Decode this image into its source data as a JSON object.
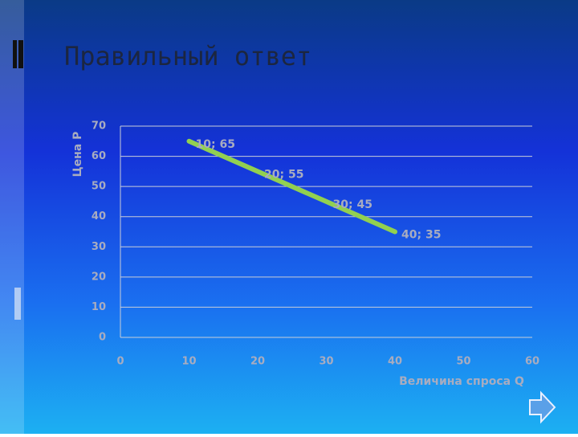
{
  "title": "Правильный ответ",
  "chart_data": {
    "type": "line",
    "x": [
      10,
      20,
      30,
      40
    ],
    "values": [
      65,
      55,
      45,
      35
    ],
    "value_labels": [
      "10; 65",
      "20; 55",
      "30; 45",
      "40; 35"
    ],
    "color": "#92d050",
    "xlabel": "Величина спроса Q",
    "ylabel": "Цена P",
    "xlim": [
      0,
      60
    ],
    "xticks": [
      0,
      10,
      20,
      30,
      40,
      50,
      60
    ],
    "ylim": [
      0,
      70
    ],
    "yticks": [
      0,
      10,
      20,
      30,
      40,
      50,
      60,
      70
    ],
    "grid": true
  }
}
